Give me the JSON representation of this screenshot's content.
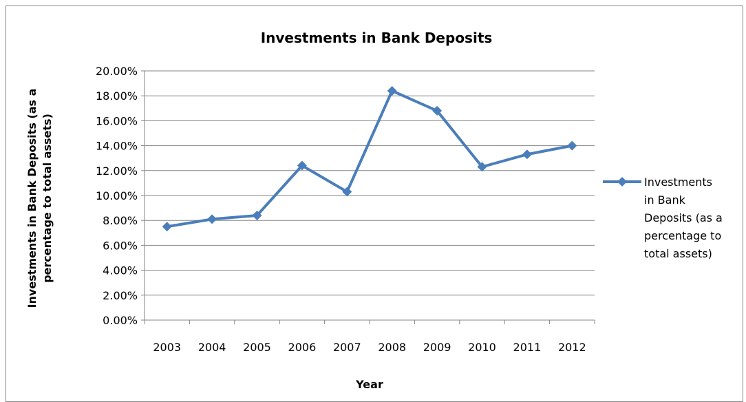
{
  "chart_data": {
    "type": "line",
    "title": "Investments in Bank Deposits",
    "xlabel": "Year",
    "ylabel_line1": "Investments in Bank Deposits (as a",
    "ylabel_line2": "percentage to total assets)",
    "categories": [
      "2003",
      "2004",
      "2005",
      "2006",
      "2007",
      "2008",
      "2009",
      "2010",
      "2011",
      "2012"
    ],
    "y_ticks": [
      "0.00%",
      "2.00%",
      "4.00%",
      "6.00%",
      "8.00%",
      "10.00%",
      "12.00%",
      "14.00%",
      "16.00%",
      "18.00%",
      "20.00%"
    ],
    "ylim": [
      0,
      20
    ],
    "grid": true,
    "legend_position": "right",
    "series": [
      {
        "name": "Investments in Bank Deposits (as a percentage to total assets)",
        "legend_lines": [
          "Investments",
          "in Bank",
          "Deposits (as a",
          "percentage to",
          "total assets)"
        ],
        "values": [
          7.5,
          8.1,
          8.4,
          12.4,
          10.3,
          18.4,
          16.8,
          12.3,
          13.3,
          14.0
        ],
        "color": "#4a7ebb",
        "marker": "diamond"
      }
    ]
  }
}
